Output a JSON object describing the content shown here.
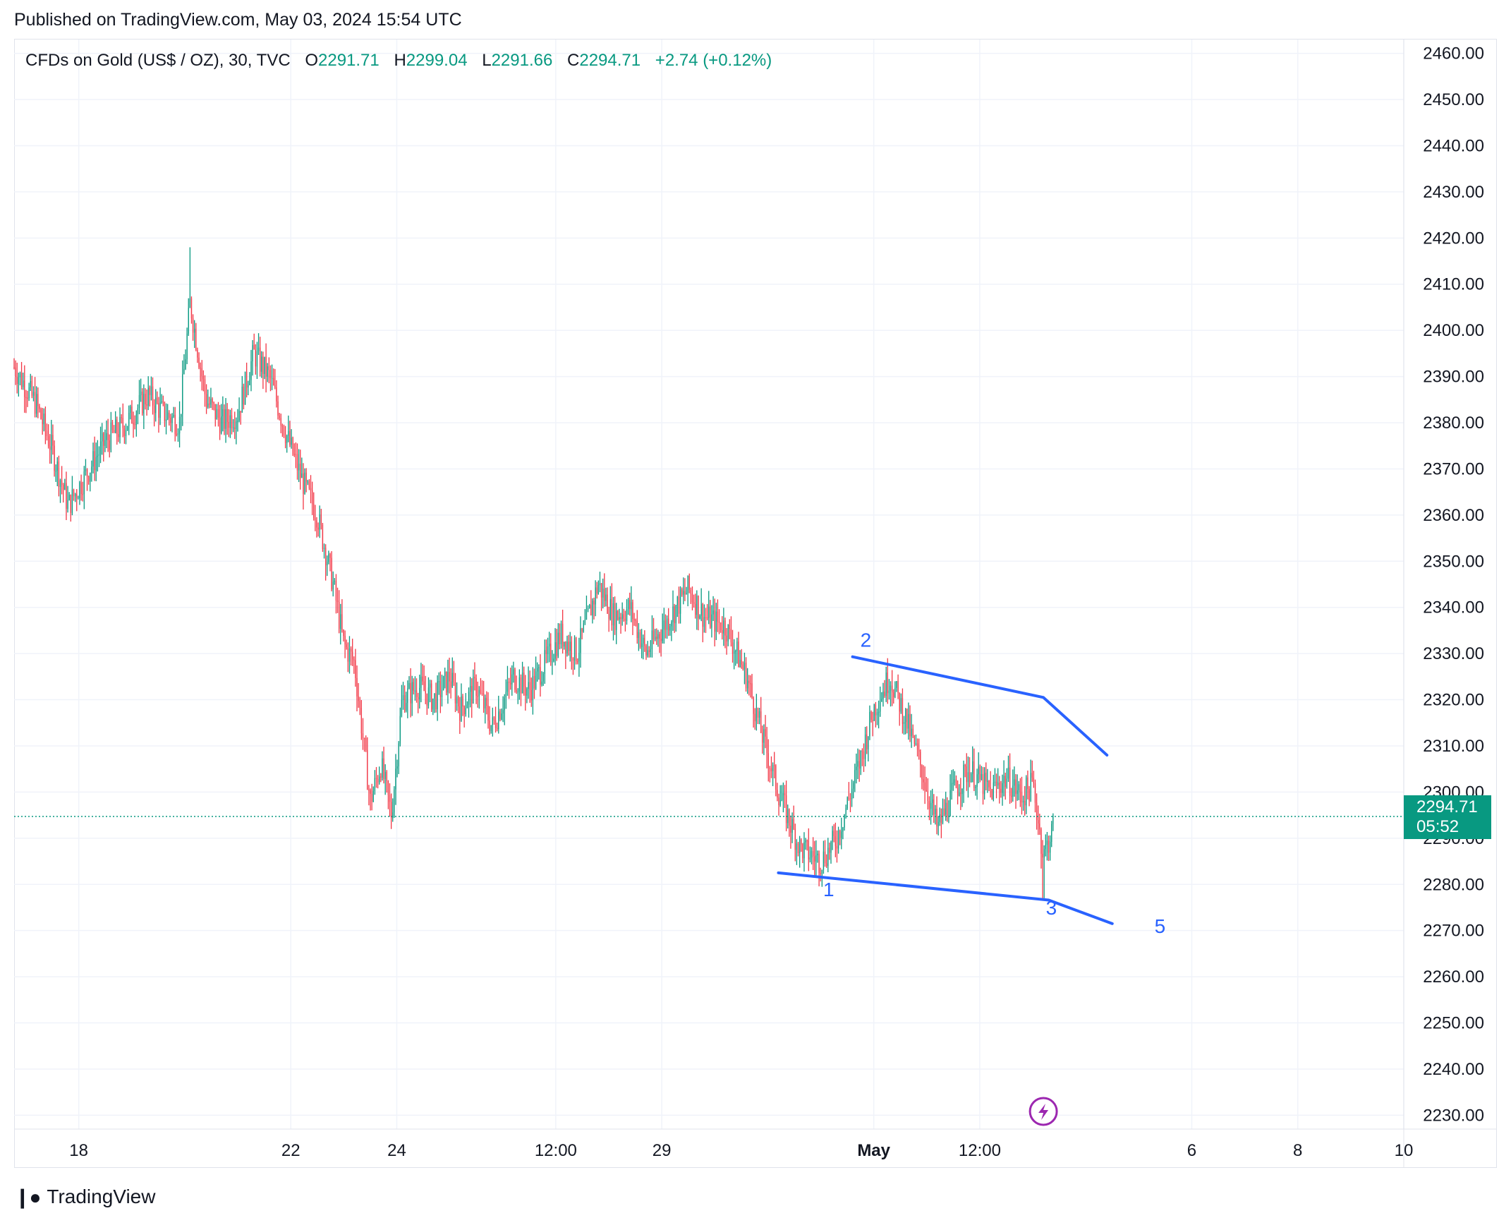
{
  "header": {
    "published": "Published on TradingView.com, May 03, 2024 15:54 UTC"
  },
  "legend": {
    "symbol": "CFDs on Gold (US$ / OZ), 30, TVC",
    "open_label": "O",
    "open": "2291.71",
    "high_label": "H",
    "high": "2299.04",
    "low_label": "L",
    "low": "2291.66",
    "close_label": "C",
    "close": "2294.71",
    "change": "+2.74 (+0.12%)"
  },
  "price_tag": {
    "price": "2294.71",
    "countdown": "05:52"
  },
  "footer": {
    "brand": "TradingView"
  },
  "colors": {
    "up": "#089981",
    "down": "#f23645",
    "trend": "#2962ff",
    "grid": "#f0f3fa",
    "last_price_line": "#089981",
    "bolt": "#9c27b0"
  },
  "icons": {
    "alert": "lightning-bolt-icon",
    "brand": "tradingview-logo-icon"
  },
  "chart_data": {
    "type": "candlestick",
    "timeframe": "30",
    "y_tick_labels": [
      "2460.00",
      "2450.00",
      "2440.00",
      "2430.00",
      "2420.00",
      "2410.00",
      "2400.00",
      "2390.00",
      "2380.00",
      "2370.00",
      "2360.00",
      "2350.00",
      "2340.00",
      "2330.00",
      "2320.00",
      "2310.00",
      "2300.00",
      "2290.00",
      "2280.00",
      "2270.00",
      "2260.00",
      "2250.00",
      "2240.00",
      "2230.00"
    ],
    "ylim": [
      2227,
      2463
    ],
    "x_tick_labels": [
      {
        "label": "18",
        "day": 18
      },
      {
        "label": "22",
        "day": 22
      },
      {
        "label": "24",
        "day": 24
      },
      {
        "label": "12:00",
        "day": 27
      },
      {
        "label": "29",
        "day": 29
      },
      {
        "label": "May",
        "day": 33,
        "bold": true
      },
      {
        "label": "12:00",
        "day": 35
      },
      {
        "label": "6",
        "day": 39
      },
      {
        "label": "8",
        "day": 41
      },
      {
        "label": "10",
        "day": 43
      }
    ],
    "xlim": [
      16.78,
      43.0
    ],
    "last_price": 2294.71,
    "price_path": [
      [
        16.78,
        2392
      ],
      [
        17.2,
        2384
      ],
      [
        17.5,
        2374
      ],
      [
        17.8,
        2362
      ],
      [
        18.1,
        2368
      ],
      [
        18.5,
        2376
      ],
      [
        18.9,
        2380
      ],
      [
        19.3,
        2386
      ],
      [
        19.6,
        2382
      ],
      [
        19.9,
        2380
      ],
      [
        20.1,
        2406
      ],
      [
        20.4,
        2385
      ],
      [
        20.7,
        2380
      ],
      [
        21.0,
        2382
      ],
      [
        21.3,
        2395
      ],
      [
        21.6,
        2390
      ],
      [
        21.9,
        2378
      ],
      [
        22.2,
        2368
      ],
      [
        22.5,
        2360
      ],
      [
        22.8,
        2345
      ],
      [
        23.0,
        2332
      ],
      [
        23.2,
        2328
      ],
      [
        23.5,
        2298
      ],
      [
        23.7,
        2306
      ],
      [
        23.9,
        2295
      ],
      [
        24.1,
        2320
      ],
      [
        24.4,
        2323
      ],
      [
        24.7,
        2320
      ],
      [
        25.0,
        2325
      ],
      [
        25.2,
        2318
      ],
      [
        25.5,
        2323
      ],
      [
        25.8,
        2314
      ],
      [
        26.2,
        2325
      ],
      [
        26.5,
        2322
      ],
      [
        26.8,
        2328
      ],
      [
        27.1,
        2334
      ],
      [
        27.4,
        2330
      ],
      [
        27.8,
        2345
      ],
      [
        28.1,
        2338
      ],
      [
        28.4,
        2340
      ],
      [
        28.7,
        2330
      ],
      [
        29.1,
        2337
      ],
      [
        29.5,
        2344
      ],
      [
        29.8,
        2338
      ],
      [
        30.2,
        2336
      ],
      [
        30.6,
        2325
      ],
      [
        30.9,
        2312
      ],
      [
        31.2,
        2300
      ],
      [
        31.6,
        2288
      ],
      [
        32.0,
        2285
      ],
      [
        32.3,
        2290
      ],
      [
        32.7,
        2305
      ],
      [
        33.0,
        2318
      ],
      [
        33.3,
        2325
      ],
      [
        33.6,
        2316
      ],
      [
        33.9,
        2305
      ],
      [
        34.2,
        2292
      ],
      [
        34.5,
        2300
      ],
      [
        34.8,
        2305
      ],
      [
        35.2,
        2300
      ],
      [
        35.5,
        2303
      ],
      [
        35.8,
        2299
      ],
      [
        36.0,
        2302
      ],
      [
        36.2,
        2286
      ],
      [
        36.4,
        2293
      ]
    ],
    "trendlines": [
      {
        "points": [
          [
            31.2,
            2282.5
          ],
          [
            36.3,
            2276.6
          ],
          [
            37.5,
            2271.5
          ]
        ]
      },
      {
        "points": [
          [
            32.6,
            2329.3
          ],
          [
            36.2,
            2320.5
          ],
          [
            37.4,
            2308.0
          ]
        ]
      }
    ],
    "wave_labels": [
      {
        "text": "1",
        "day": 32.15,
        "price": 2279
      },
      {
        "text": "2",
        "day": 32.85,
        "price": 2333
      },
      {
        "text": "3",
        "day": 36.35,
        "price": 2275
      },
      {
        "text": "5",
        "day": 38.4,
        "price": 2271
      }
    ],
    "grid": true
  }
}
